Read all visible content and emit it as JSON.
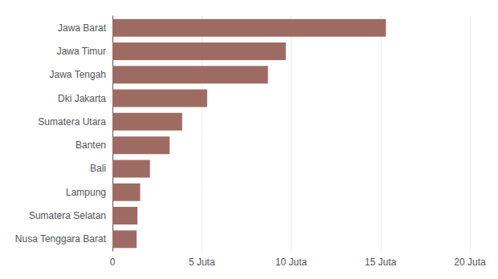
{
  "chart_data": {
    "type": "bar",
    "orientation": "horizontal",
    "categories": [
      "Nusa Tenggara Barat",
      "Sumatera Selatan",
      "Lampung",
      "Bali",
      "Banten",
      "Sumatera Utara",
      "Dki Jakarta",
      "Jawa Tengah",
      "Jawa Timur",
      "Jawa Barat"
    ],
    "values": [
      1.35,
      1.4,
      1.55,
      2.1,
      3.2,
      3.9,
      5.3,
      8.7,
      9.7,
      15.3
    ],
    "color": "#9e6b62",
    "xlim": [
      0,
      20
    ],
    "xticks": [
      0,
      {
        "value": 5,
        "label": "5 Juta"
      },
      {
        "value": 10,
        "label": "10 Juta"
      },
      {
        "value": 15,
        "label": "15 Juta"
      },
      {
        "value": 20,
        "label": "20 Juta"
      }
    ],
    "grid": true
  }
}
